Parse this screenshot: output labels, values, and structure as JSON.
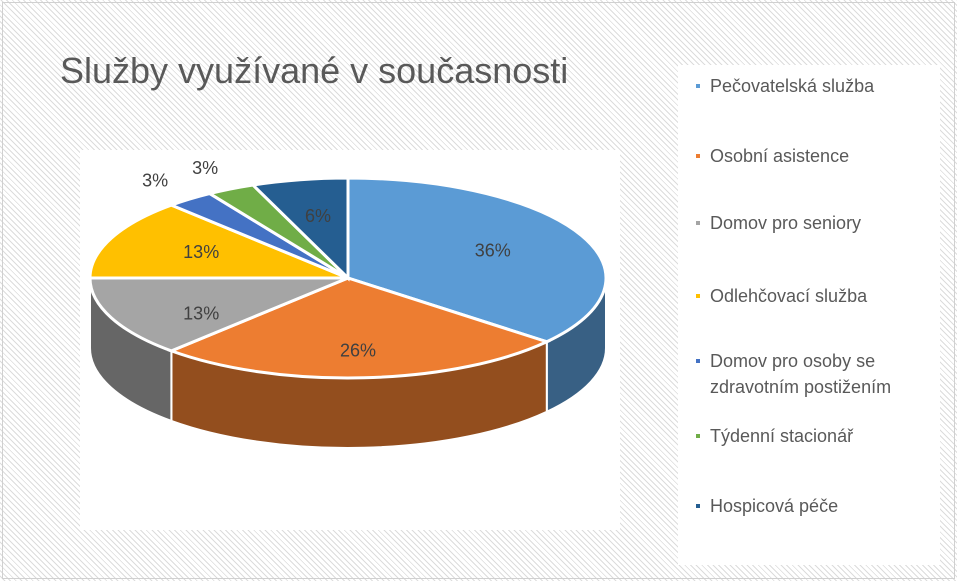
{
  "chart_data": {
    "type": "pie3d",
    "title": "Služby využívané v současnosti",
    "categories": [
      "Pečovatelská služba",
      "Osobní asistence",
      "Domov pro seniory",
      "Odlehčovací služba",
      "Domov pro osoby se zdravotním postižením",
      "Týdenní stacionář",
      "Hospicová péče"
    ],
    "values": [
      36,
      26,
      13,
      13,
      3,
      3,
      6
    ],
    "value_labels": [
      "36%",
      "26%",
      "13%",
      "13%",
      "3%",
      "3%",
      "6%"
    ],
    "colors": [
      "#5b9bd5",
      "#ed7d31",
      "#a5a5a5",
      "#ffc000",
      "#4472c4",
      "#70ad47",
      "#255e91"
    ],
    "legend": "right"
  }
}
